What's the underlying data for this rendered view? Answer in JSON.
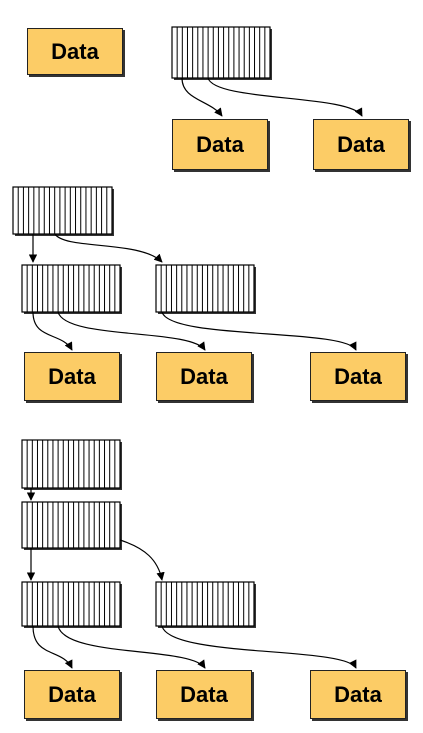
{
  "boxes": {
    "box1": "Data",
    "box2": "Data",
    "box3": "Data",
    "box4": "Data",
    "box5": "Data",
    "box6": "Data",
    "box7": "Data",
    "box8": "Data",
    "box9": "Data"
  },
  "colors": {
    "data_fill": "#fccc66",
    "outline": "#000000"
  }
}
